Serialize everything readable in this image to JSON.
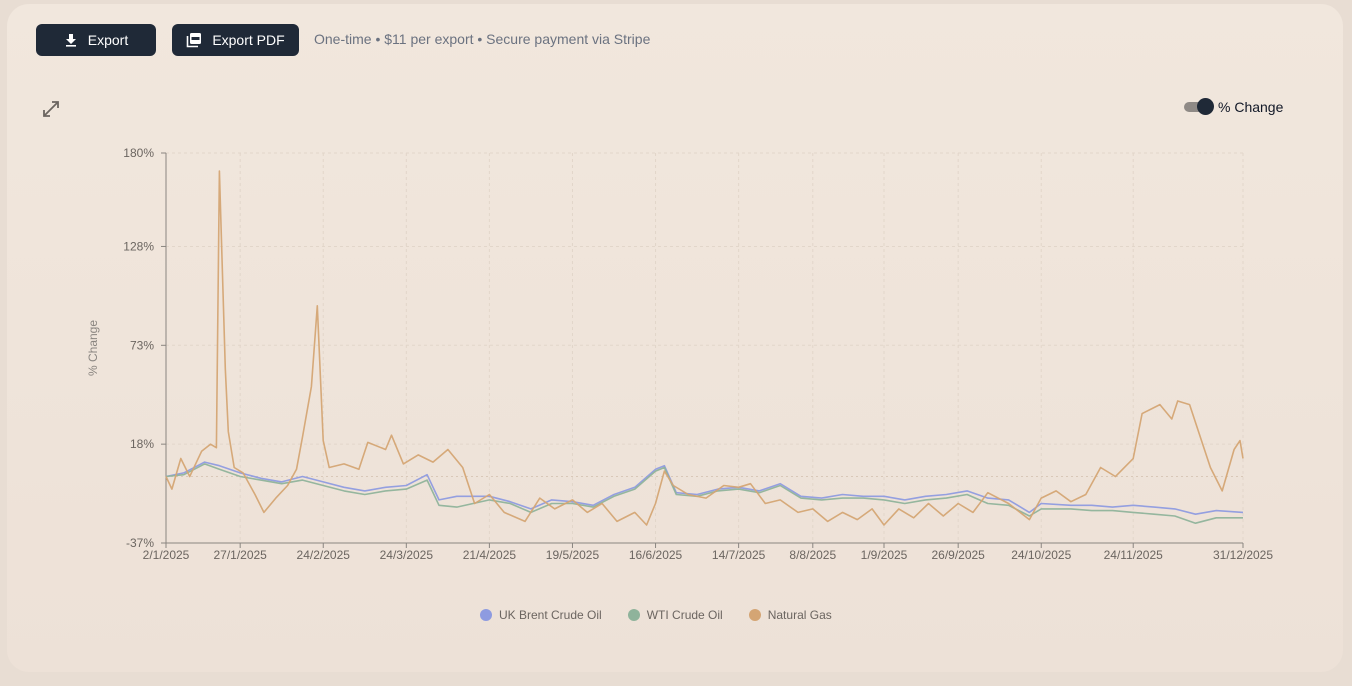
{
  "toolbar": {
    "export_label": "Export",
    "export_pdf_label": "Export PDF",
    "note": "One-time • $11 per export • Secure payment via Stripe"
  },
  "toggle": {
    "label": "% Change",
    "on": true
  },
  "icons": {
    "export": "download-icon",
    "pdf": "pdf-icon",
    "expand": "expand-icon"
  },
  "chart_data": {
    "type": "line",
    "ylabel": "% Change",
    "xlabel": "",
    "ylim": [
      -37,
      180
    ],
    "yticks": [
      "180%",
      "128%",
      "73%",
      "18%",
      "-37%"
    ],
    "ytick_values": [
      180,
      128,
      73,
      18,
      -37
    ],
    "x_start": "2/1/2025",
    "x_end": "31/12/2025",
    "xticks": [
      "2/1/2025",
      "27/1/2025",
      "24/2/2025",
      "24/3/2025",
      "21/4/2025",
      "19/5/2025",
      "16/6/2025",
      "14/7/2025",
      "8/8/2025",
      "1/9/2025",
      "26/9/2025",
      "24/10/2025",
      "24/11/2025",
      "31/12/2025"
    ],
    "grid": true,
    "legend_position": "bottom",
    "series": [
      {
        "name": "UK Brent Crude Oil",
        "color": "#8e9be0",
        "points": [
          [
            "2/1/2025",
            0
          ],
          [
            "8/1/2025",
            2
          ],
          [
            "15/1/2025",
            8
          ],
          [
            "20/1/2025",
            6
          ],
          [
            "27/1/2025",
            2
          ],
          [
            "3/2/2025",
            -1
          ],
          [
            "10/2/2025",
            -3
          ],
          [
            "17/2/2025",
            0
          ],
          [
            "24/2/2025",
            -3
          ],
          [
            "3/3/2025",
            -6
          ],
          [
            "10/3/2025",
            -8
          ],
          [
            "17/3/2025",
            -6
          ],
          [
            "24/3/2025",
            -5
          ],
          [
            "31/3/2025",
            1
          ],
          [
            "4/4/2025",
            -13
          ],
          [
            "10/4/2025",
            -11
          ],
          [
            "21/4/2025",
            -11
          ],
          [
            "28/4/2025",
            -14
          ],
          [
            "5/5/2025",
            -18
          ],
          [
            "12/5/2025",
            -13
          ],
          [
            "19/5/2025",
            -14
          ],
          [
            "26/5/2025",
            -16
          ],
          [
            "2/6/2025",
            -10
          ],
          [
            "9/6/2025",
            -6
          ],
          [
            "16/6/2025",
            4
          ],
          [
            "19/6/2025",
            6
          ],
          [
            "23/6/2025",
            -9
          ],
          [
            "30/6/2025",
            -10
          ],
          [
            "7/7/2025",
            -7
          ],
          [
            "14/7/2025",
            -6
          ],
          [
            "21/7/2025",
            -8
          ],
          [
            "28/7/2025",
            -4
          ],
          [
            "4/8/2025",
            -11
          ],
          [
            "11/8/2025",
            -12
          ],
          [
            "18/8/2025",
            -10
          ],
          [
            "25/8/2025",
            -11
          ],
          [
            "1/9/2025",
            -11
          ],
          [
            "8/9/2025",
            -13
          ],
          [
            "15/9/2025",
            -11
          ],
          [
            "22/9/2025",
            -10
          ],
          [
            "29/9/2025",
            -8
          ],
          [
            "6/10/2025",
            -12
          ],
          [
            "13/10/2025",
            -13
          ],
          [
            "20/10/2025",
            -20
          ],
          [
            "24/10/2025",
            -15
          ],
          [
            "3/11/2025",
            -16
          ],
          [
            "10/11/2025",
            -16
          ],
          [
            "17/11/2025",
            -17
          ],
          [
            "24/11/2025",
            -16
          ],
          [
            "1/12/2025",
            -17
          ],
          [
            "8/12/2025",
            -18
          ],
          [
            "15/12/2025",
            -21
          ],
          [
            "22/12/2025",
            -19
          ],
          [
            "31/12/2025",
            -20
          ]
        ]
      },
      {
        "name": "WTI Crude Oil",
        "color": "#8fb39b",
        "points": [
          [
            "2/1/2025",
            0
          ],
          [
            "8/1/2025",
            1
          ],
          [
            "15/1/2025",
            7
          ],
          [
            "20/1/2025",
            4
          ],
          [
            "27/1/2025",
            0
          ],
          [
            "3/2/2025",
            -2
          ],
          [
            "10/2/2025",
            -4
          ],
          [
            "17/2/2025",
            -2
          ],
          [
            "24/2/2025",
            -5
          ],
          [
            "3/3/2025",
            -8
          ],
          [
            "10/3/2025",
            -10
          ],
          [
            "17/3/2025",
            -8
          ],
          [
            "24/3/2025",
            -7
          ],
          [
            "31/3/2025",
            -2
          ],
          [
            "4/4/2025",
            -16
          ],
          [
            "10/4/2025",
            -17
          ],
          [
            "21/4/2025",
            -13
          ],
          [
            "28/4/2025",
            -15
          ],
          [
            "5/5/2025",
            -20
          ],
          [
            "12/5/2025",
            -15
          ],
          [
            "19/5/2025",
            -15
          ],
          [
            "26/5/2025",
            -17
          ],
          [
            "2/6/2025",
            -11
          ],
          [
            "9/6/2025",
            -7
          ],
          [
            "16/6/2025",
            3
          ],
          [
            "19/6/2025",
            5
          ],
          [
            "23/6/2025",
            -10
          ],
          [
            "30/6/2025",
            -11
          ],
          [
            "7/7/2025",
            -8
          ],
          [
            "14/7/2025",
            -7
          ],
          [
            "21/7/2025",
            -9
          ],
          [
            "28/7/2025",
            -5
          ],
          [
            "4/8/2025",
            -12
          ],
          [
            "11/8/2025",
            -13
          ],
          [
            "18/8/2025",
            -12
          ],
          [
            "25/8/2025",
            -12
          ],
          [
            "1/9/2025",
            -13
          ],
          [
            "8/9/2025",
            -15
          ],
          [
            "15/9/2025",
            -13
          ],
          [
            "22/9/2025",
            -12
          ],
          [
            "29/9/2025",
            -10
          ],
          [
            "6/10/2025",
            -15
          ],
          [
            "13/10/2025",
            -16
          ],
          [
            "20/10/2025",
            -22
          ],
          [
            "24/10/2025",
            -18
          ],
          [
            "3/11/2025",
            -18
          ],
          [
            "10/11/2025",
            -19
          ],
          [
            "17/11/2025",
            -19
          ],
          [
            "24/11/2025",
            -20
          ],
          [
            "1/12/2025",
            -21
          ],
          [
            "8/12/2025",
            -22
          ],
          [
            "15/12/2025",
            -26
          ],
          [
            "22/12/2025",
            -23
          ],
          [
            "31/12/2025",
            -23
          ]
        ]
      },
      {
        "name": "Natural Gas",
        "color": "#d4a574",
        "points": [
          [
            "2/1/2025",
            0
          ],
          [
            "4/1/2025",
            -7
          ],
          [
            "7/1/2025",
            10
          ],
          [
            "10/1/2025",
            0
          ],
          [
            "14/1/2025",
            14
          ],
          [
            "17/1/2025",
            18
          ],
          [
            "19/1/2025",
            16
          ],
          [
            "20/1/2025",
            170
          ],
          [
            "22/1/2025",
            60
          ],
          [
            "23/1/2025",
            25
          ],
          [
            "25/1/2025",
            5
          ],
          [
            "28/1/2025",
            2
          ],
          [
            "1/2/2025",
            -10
          ],
          [
            "4/2/2025",
            -20
          ],
          [
            "8/2/2025",
            -12
          ],
          [
            "12/2/2025",
            -5
          ],
          [
            "15/2/2025",
            4
          ],
          [
            "17/2/2025",
            22
          ],
          [
            "20/2/2025",
            50
          ],
          [
            "22/2/2025",
            95
          ],
          [
            "24/2/2025",
            20
          ],
          [
            "26/2/2025",
            5
          ],
          [
            "3/3/2025",
            7
          ],
          [
            "8/3/2025",
            4
          ],
          [
            "11/3/2025",
            19
          ],
          [
            "17/3/2025",
            15
          ],
          [
            "19/3/2025",
            23
          ],
          [
            "23/3/2025",
            7
          ],
          [
            "28/3/2025",
            12
          ],
          [
            "2/4/2025",
            8
          ],
          [
            "7/4/2025",
            15
          ],
          [
            "12/4/2025",
            5
          ],
          [
            "16/4/2025",
            -15
          ],
          [
            "21/4/2025",
            -10
          ],
          [
            "26/4/2025",
            -20
          ],
          [
            "3/5/2025",
            -25
          ],
          [
            "8/5/2025",
            -12
          ],
          [
            "13/5/2025",
            -18
          ],
          [
            "19/5/2025",
            -13
          ],
          [
            "24/5/2025",
            -20
          ],
          [
            "29/5/2025",
            -15
          ],
          [
            "3/6/2025",
            -25
          ],
          [
            "9/6/2025",
            -20
          ],
          [
            "13/6/2025",
            -27
          ],
          [
            "16/6/2025",
            -15
          ],
          [
            "19/6/2025",
            3
          ],
          [
            "22/6/2025",
            -5
          ],
          [
            "27/6/2025",
            -10
          ],
          [
            "3/7/2025",
            -12
          ],
          [
            "9/7/2025",
            -5
          ],
          [
            "14/7/2025",
            -6
          ],
          [
            "18/7/2025",
            -4
          ],
          [
            "23/7/2025",
            -15
          ],
          [
            "28/7/2025",
            -13
          ],
          [
            "3/8/2025",
            -20
          ],
          [
            "8/8/2025",
            -18
          ],
          [
            "13/8/2025",
            -25
          ],
          [
            "18/8/2025",
            -20
          ],
          [
            "23/8/2025",
            -24
          ],
          [
            "28/8/2025",
            -18
          ],
          [
            "1/9/2025",
            -27
          ],
          [
            "6/9/2025",
            -18
          ],
          [
            "11/9/2025",
            -23
          ],
          [
            "16/9/2025",
            -15
          ],
          [
            "21/9/2025",
            -22
          ],
          [
            "26/9/2025",
            -15
          ],
          [
            "1/10/2025",
            -20
          ],
          [
            "6/10/2025",
            -9
          ],
          [
            "13/10/2025",
            -15
          ],
          [
            "20/10/2025",
            -24
          ],
          [
            "24/10/2025",
            -12
          ],
          [
            "29/10/2025",
            -8
          ],
          [
            "3/11/2025",
            -14
          ],
          [
            "8/11/2025",
            -10
          ],
          [
            "13/11/2025",
            5
          ],
          [
            "18/11/2025",
            0
          ],
          [
            "24/11/2025",
            10
          ],
          [
            "27/11/2025",
            35
          ],
          [
            "3/12/2025",
            40
          ],
          [
            "7/12/2025",
            32
          ],
          [
            "9/12/2025",
            42
          ],
          [
            "13/12/2025",
            40
          ],
          [
            "17/12/2025",
            20
          ],
          [
            "20/12/2025",
            5
          ],
          [
            "24/12/2025",
            -8
          ],
          [
            "28/12/2025",
            15
          ],
          [
            "30/12/2025",
            20
          ],
          [
            "31/12/2025",
            10
          ]
        ]
      }
    ]
  }
}
